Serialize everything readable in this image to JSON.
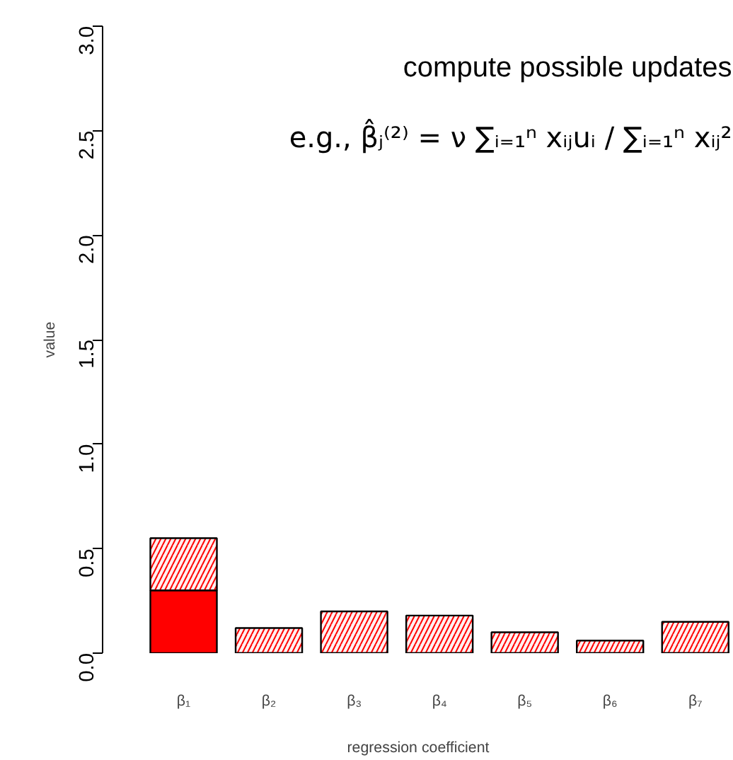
{
  "chart_data": {
    "type": "bar",
    "stacked": true,
    "xlabel": "regression coefficient",
    "ylabel": "value",
    "categories": [
      "β₁",
      "β₂",
      "β₃",
      "β₄",
      "β₅",
      "β₆",
      "β₇"
    ],
    "series": [
      {
        "color": "#ff0000",
        "values": [
          0.3,
          0,
          0,
          0,
          0,
          0,
          0
        ]
      },
      {
        "color": "#ff0000",
        "values": [
          0.25,
          0.12,
          0.2,
          0.18,
          0.1,
          0.06,
          0.15
        ]
      }
    ],
    "ylim": [
      0,
      3
    ],
    "yticks": [
      {
        "value": 0,
        "label": "0.0"
      },
      {
        "value": 0.5,
        "label": "0.5"
      },
      {
        "value": 1,
        "label": "1.0"
      },
      {
        "value": 1.5,
        "label": "1.5"
      },
      {
        "value": 2,
        "label": "2.0"
      },
      {
        "value": 2.5,
        "label": "2.5"
      },
      {
        "value": 3,
        "label": "3.0"
      }
    ],
    "grid": false,
    "annotations": [
      "compute possible updates",
      "e.g., β̂ⱼ⁽²⁾ = ν ∑ᵢ₌₁ⁿ xᵢⱼuᵢ / ∑ᵢ₌₁ⁿ xᵢⱼ²"
    ]
  }
}
